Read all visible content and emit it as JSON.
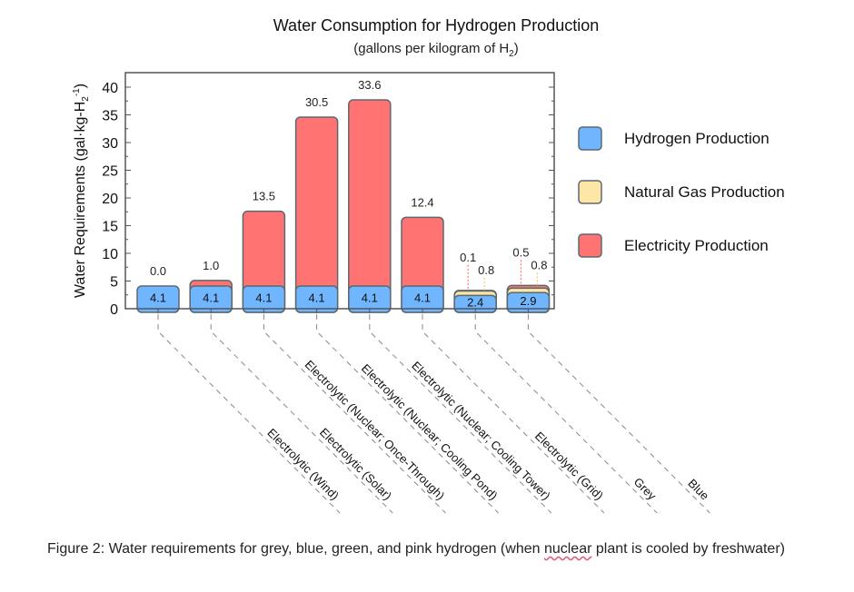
{
  "chart_data": {
    "type": "bar",
    "stacked": true,
    "title": "Water Consumption for Hydrogen Production",
    "subtitle_prefix": "(gallons per kilogram of H",
    "subtitle_sub": "2",
    "subtitle_suffix": ")",
    "ylabel_prefix": "Water Requirements (gal·kg-H",
    "ylabel_sub": "2",
    "ylabel_sup": "-1",
    "ylabel_suffix": ")",
    "ylim": [
      0,
      40
    ],
    "yticks": [
      "0",
      "5",
      "10",
      "15",
      "20",
      "25",
      "30",
      "35",
      "40"
    ],
    "categories": [
      "Electrolytic (Wind)",
      "Electrolytic (Solar)",
      "Electrolytic (Nuclear; Once-Through)",
      "Electrolytic (Nuclear; Cooling Pond)",
      "Electrolytic (Nuclear; Cooling Tower)",
      "Electrolytic (Grid)",
      "Grey",
      "Blue"
    ],
    "series": [
      {
        "name": "Hydrogen Production",
        "color": "#6fb6ff",
        "values": [
          4.1,
          4.1,
          4.1,
          4.1,
          4.1,
          4.1,
          2.4,
          2.9
        ],
        "labels": [
          "4.1",
          "4.1",
          "4.1",
          "4.1",
          "4.1",
          "4.1",
          "2.4",
          "2.9"
        ]
      },
      {
        "name": "Natural Gas Production",
        "color": "#fde6a6",
        "values": [
          0,
          0,
          0,
          0,
          0,
          0,
          0.8,
          0.8
        ],
        "labels": [
          "",
          "",
          "",
          "",
          "",
          "",
          "0.8",
          "0.8"
        ]
      },
      {
        "name": "Electricity Production",
        "color": "#ff7472",
        "values": [
          0.0,
          1.0,
          13.5,
          30.5,
          33.6,
          12.4,
          0.1,
          0.5
        ],
        "labels": [
          "0.0",
          "1.0",
          "13.5",
          "30.5",
          "33.6",
          "12.4",
          "0.1",
          "0.5"
        ]
      }
    ],
    "legend": "right",
    "grid": false
  },
  "caption": {
    "before": "Figure 2: Water requirements for grey, blue, green, and pink hydrogen (when ",
    "flagged": "nuclear",
    "after": " plant is cooled by freshwater)"
  }
}
